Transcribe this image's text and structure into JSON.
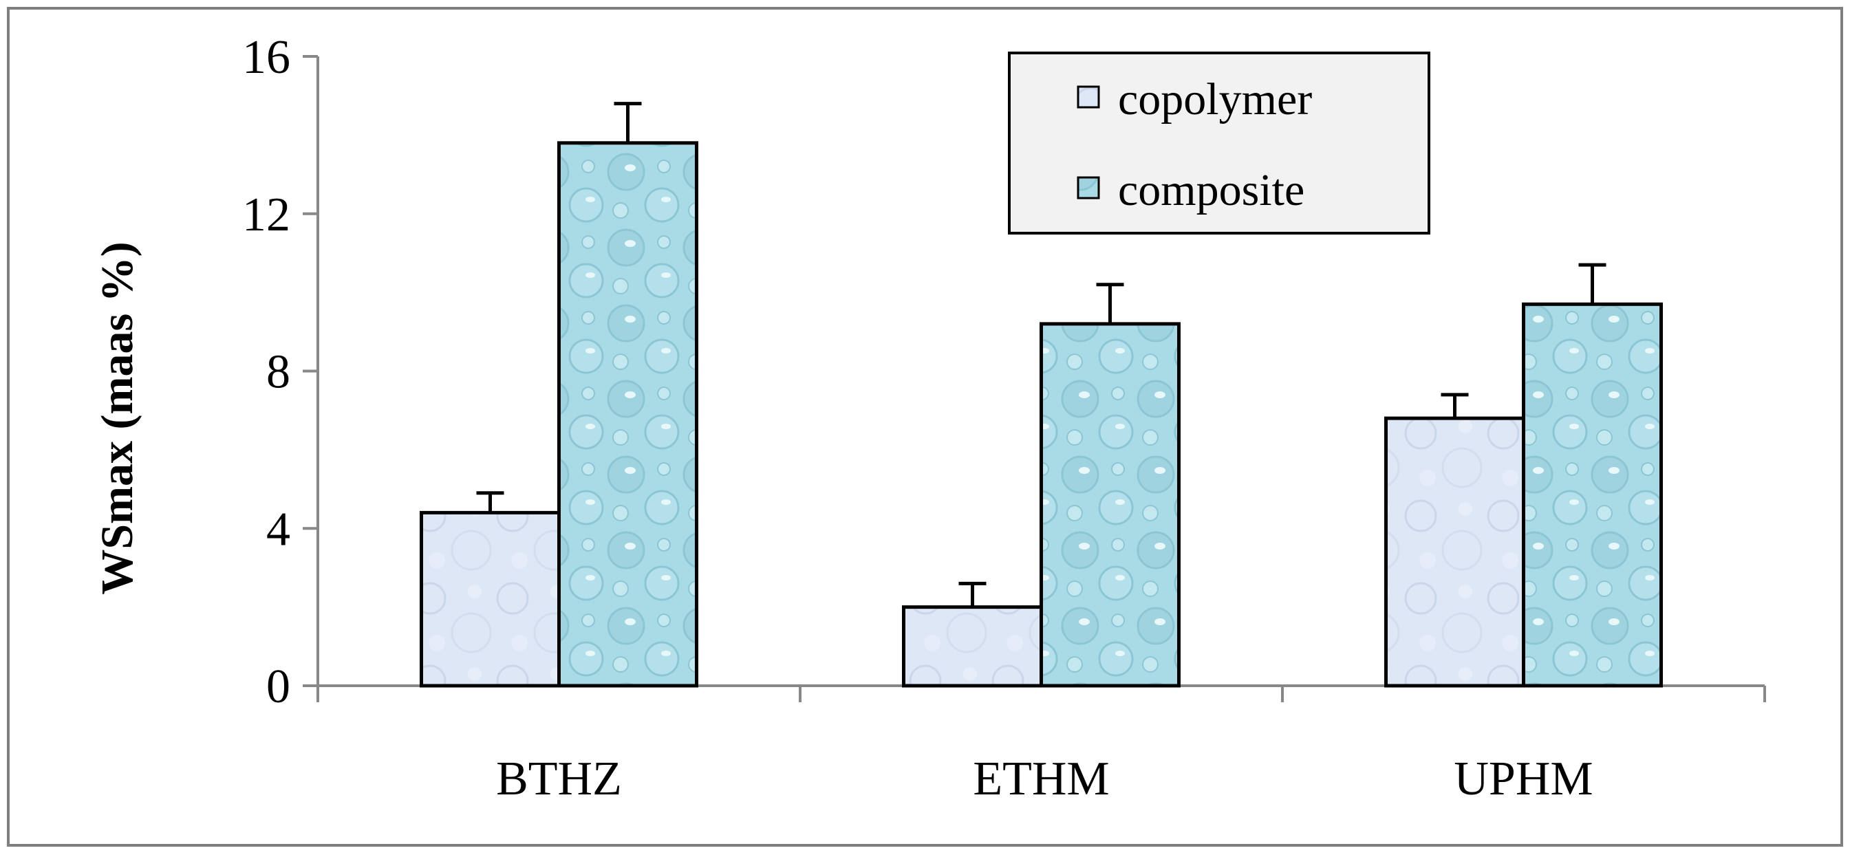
{
  "chart_data": {
    "type": "bar",
    "ylabel": "WSmax (maas %)",
    "xlabel": "",
    "categories": [
      "BTHZ",
      "ETHM",
      "UPHM"
    ],
    "series": [
      {
        "name": "copolymer",
        "values": [
          4.4,
          2.0,
          6.8
        ],
        "errors": [
          0.5,
          0.6,
          0.6
        ]
      },
      {
        "name": "composite",
        "values": [
          13.8,
          9.2,
          9.7
        ],
        "errors": [
          1.0,
          1.0,
          1.0
        ]
      }
    ],
    "ylim": [
      0,
      16
    ],
    "yticks": [
      "0",
      "4",
      "8",
      "12",
      "16"
    ],
    "legend_position": "top-center",
    "grid": false,
    "colors": {
      "copolymer": "#dde7f5",
      "composite": "#a9dbe6",
      "outline": "#000000",
      "axis": "#888888"
    }
  }
}
